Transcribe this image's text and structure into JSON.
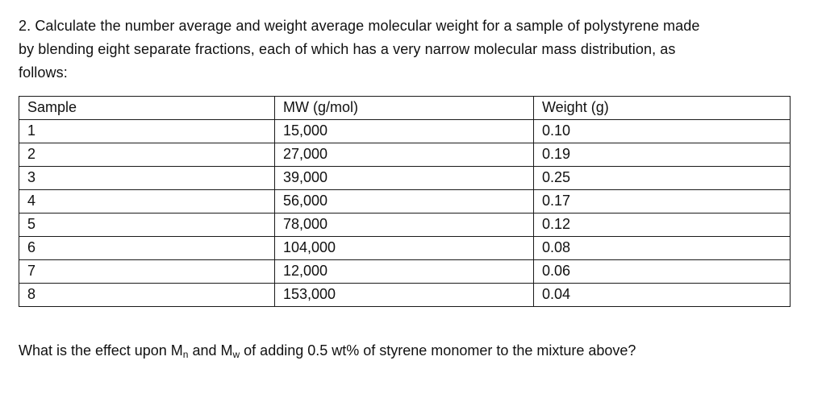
{
  "intro": {
    "lines": [
      "2. Calculate the number average and weight average molecular weight for a sample of polystyrene made",
      "by blending eight separate fractions, each of which has a very narrow molecular mass distribution, as",
      "follows:"
    ]
  },
  "table": {
    "headers": [
      "Sample",
      "MW (g/mol)",
      "Weight (g)"
    ],
    "rows": [
      [
        "1",
        "15,000",
        "0.10"
      ],
      [
        "2",
        "27,000",
        "0.19"
      ],
      [
        "3",
        "39,000",
        "0.25"
      ],
      [
        "4",
        "56,000",
        "0.17"
      ],
      [
        "5",
        "78,000",
        "0.12"
      ],
      [
        "6",
        "104,000",
        "0.08"
      ],
      [
        "7",
        "12,000",
        "0.06"
      ],
      [
        "8",
        "153,000",
        "0.04"
      ]
    ]
  },
  "question": {
    "part1": "What is the effect upon M",
    "sub_n": "n",
    "part2": " and M",
    "sub_w": "w",
    "part3": " of adding 0.5 wt% of styrene monomer to the mixture above?"
  },
  "colors": {
    "text": "#111111",
    "border": "#1a1a1a",
    "background": "#ffffff"
  }
}
